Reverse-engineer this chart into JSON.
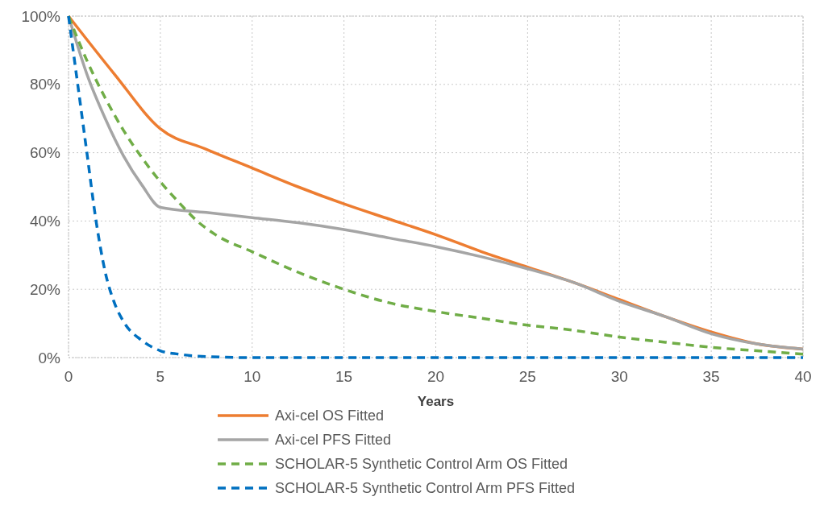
{
  "chart_data": {
    "type": "line",
    "xlabel": "Years",
    "xlim": [
      0,
      40
    ],
    "xticks": [
      0,
      5,
      10,
      15,
      20,
      25,
      30,
      35,
      40
    ],
    "ylim": [
      0,
      100
    ],
    "yticks": [
      {
        "value": 0,
        "label": "0%"
      },
      {
        "value": 20,
        "label": "20%"
      },
      {
        "value": 40,
        "label": "40%"
      },
      {
        "value": 60,
        "label": "60%"
      },
      {
        "value": 80,
        "label": "80%"
      },
      {
        "value": 100,
        "label": "100%"
      }
    ],
    "grid": true,
    "legend": "bottom",
    "marker": "none",
    "series": [
      {
        "name": "Axi-cel OS Fitted",
        "color": "#ed7d31",
        "line_style": "solid",
        "x": [
          0,
          2.5,
          5,
          7.5,
          10,
          12.5,
          15,
          17.5,
          20,
          22.5,
          25,
          27.5,
          30,
          32.5,
          35,
          37.5,
          40
        ],
        "values": [
          100,
          83,
          67,
          61,
          55.5,
          50,
          45,
          40.5,
          36,
          31,
          26.5,
          22,
          17,
          12,
          7.5,
          4,
          2.5
        ]
      },
      {
        "name": "Axi-cel PFS Fitted",
        "color": "#a5a5a5",
        "line_style": "solid",
        "x": [
          0,
          1,
          2,
          3,
          4,
          5,
          7.5,
          10,
          12.5,
          15,
          17.5,
          20,
          22.5,
          25,
          27.5,
          30,
          32.5,
          35,
          37.5,
          40
        ],
        "values": [
          100,
          83,
          70,
          59,
          50.5,
          44,
          42.5,
          41,
          39.5,
          37.5,
          35,
          32.5,
          29.5,
          26,
          22,
          16.5,
          12,
          7,
          4,
          2.5
        ]
      },
      {
        "name": "SCHOLAR-5 Synthetic Control Arm OS Fitted",
        "color": "#70ad47",
        "line_style": "dashed",
        "x": [
          0,
          1,
          2,
          3,
          4,
          5,
          6,
          7,
          8,
          10,
          12.5,
          15,
          17.5,
          20,
          22.5,
          25,
          27.5,
          30,
          32.5,
          35,
          37.5,
          40
        ],
        "values": [
          100,
          87,
          76,
          66.5,
          58.5,
          51.5,
          45.5,
          40,
          36,
          31,
          25,
          20,
          16,
          13.5,
          11.5,
          9.5,
          8,
          6,
          4.5,
          3,
          2,
          1
        ]
      },
      {
        "name": "SCHOLAR-5 Synthetic Control Arm PFS Fitted",
        "color": "#0070c0",
        "line_style": "dashed",
        "x": [
          0,
          0.5,
          1,
          1.5,
          2,
          2.5,
          3,
          4,
          5,
          6,
          7.5,
          10,
          20,
          30,
          40
        ],
        "values": [
          100,
          80,
          60,
          40,
          25,
          16,
          10.5,
          5,
          2,
          1,
          0.3,
          0,
          0,
          0,
          0
        ]
      }
    ]
  }
}
